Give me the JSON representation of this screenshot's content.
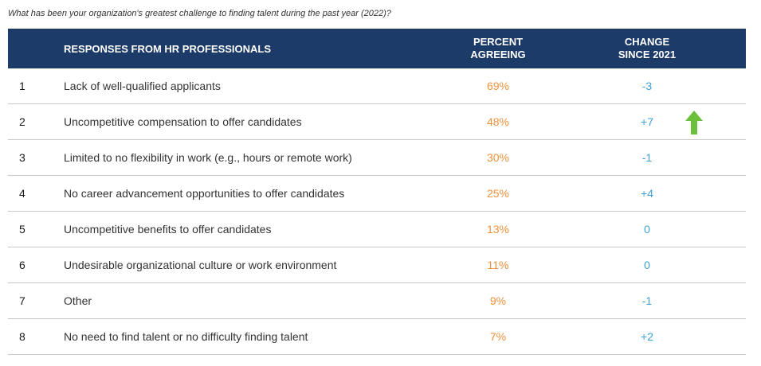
{
  "question": "What has been your organization's greatest challenge to finding talent during the past year (2022)?",
  "headers": {
    "responses": "RESPONSES FROM HR PROFESSIONALS",
    "percent_line1": "PERCENT",
    "percent_line2": "AGREEING",
    "change_line1": "CHANGE",
    "change_line2": "SINCE 2021"
  },
  "rows": [
    {
      "rank": "1",
      "response": "Lack of well-qualified applicants",
      "percent": "69%",
      "change": "-3"
    },
    {
      "rank": "2",
      "response": "Uncompetitive compensation to offer candidates",
      "percent": "48%",
      "change": "+7"
    },
    {
      "rank": "3",
      "response": "Limited to no flexibility in work (e.g., hours or remote work)",
      "percent": "30%",
      "change": "-1"
    },
    {
      "rank": "4",
      "response": "No career advancement opportunities to offer candidates",
      "percent": "25%",
      "change": "+4"
    },
    {
      "rank": "5",
      "response": "Uncompetitive benefits to offer candidates",
      "percent": "13%",
      "change": "0"
    },
    {
      "rank": "6",
      "response": "Undesirable organizational culture or work environment",
      "percent": "11%",
      "change": "0"
    },
    {
      "rank": "7",
      "response": "Other",
      "percent": "9%",
      "change": "-1"
    },
    {
      "rank": "8",
      "response": "No need to find talent or no difficulty finding talent",
      "percent": "7%",
      "change": "+2"
    }
  ],
  "colors": {
    "header_bg": "#1d3b68",
    "percent": "#f0913a",
    "change": "#3fa0d6",
    "arrow": "#6bbf3a"
  },
  "icons": {
    "row2_indicator": "green-up-arrow-icon"
  }
}
